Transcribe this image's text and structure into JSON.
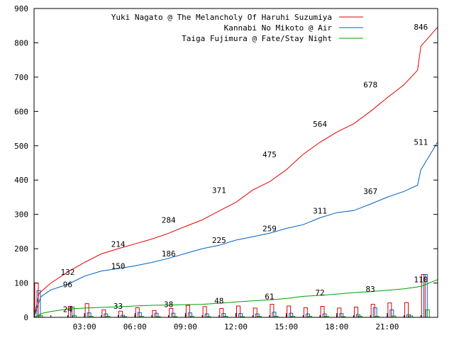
{
  "chart_data": {
    "type": "line",
    "title": "",
    "xlabel": "",
    "ylabel": "",
    "xlim": [
      0,
      24
    ],
    "ylim": [
      0,
      900
    ],
    "y_ticks": [
      0,
      100,
      200,
      300,
      400,
      500,
      600,
      700,
      800,
      900
    ],
    "x_ticks": [
      {
        "x": 3,
        "label": "03:00"
      },
      {
        "x": 6,
        "label": "06:00"
      },
      {
        "x": 9,
        "label": "09:00"
      },
      {
        "x": 12,
        "label": "12:00"
      },
      {
        "x": 15,
        "label": "15:00"
      },
      {
        "x": 18,
        "label": "18:00"
      },
      {
        "x": 21,
        "label": "21:00"
      }
    ],
    "legend_placement": "top-right",
    "grid": false,
    "series": [
      {
        "name": "Yuki Nagato @ The Melancholy Of Haruhi Suzumiya",
        "color": "#e00000",
        "x": [
          0,
          0.3,
          1,
          2,
          3,
          4,
          5,
          6,
          7,
          8,
          9,
          10,
          11,
          12,
          13,
          14,
          15,
          16,
          17,
          18,
          19,
          20,
          21,
          22,
          22.8,
          23,
          24
        ],
        "y": [
          0,
          70,
          100,
          132,
          160,
          185,
          200,
          214,
          228,
          245,
          265,
          284,
          310,
          335,
          371,
          395,
          430,
          475,
          510,
          540,
          564,
          600,
          640,
          678,
          720,
          790,
          846
        ],
        "labels": [
          {
            "x": 2,
            "y": 132,
            "text": "132"
          },
          {
            "x": 5,
            "y": 214,
            "text": "214"
          },
          {
            "x": 8,
            "y": 284,
            "text": "284"
          },
          {
            "x": 11,
            "y": 371,
            "text": "371"
          },
          {
            "x": 14,
            "y": 475,
            "text": "475"
          },
          {
            "x": 17,
            "y": 564,
            "text": "564"
          },
          {
            "x": 20,
            "y": 678,
            "text": "678"
          },
          {
            "x": 23,
            "y": 846,
            "text": "846"
          }
        ],
        "hourly_counts": [
          100,
          0,
          32,
          40,
          22,
          18,
          28,
          20,
          26,
          35,
          31,
          26,
          33,
          27,
          38,
          33,
          28,
          32,
          27,
          30,
          38,
          42,
          43,
          125
        ]
      },
      {
        "name": "Kannabi No Mikoto @ Air",
        "color": "#0060c0",
        "x": [
          0,
          0.4,
          1,
          2,
          3,
          4,
          5,
          6,
          7,
          8,
          9,
          10,
          11,
          12,
          13,
          14,
          15,
          16,
          17,
          18,
          19,
          20,
          21,
          22,
          22.8,
          23,
          23.5,
          24
        ],
        "y": [
          0,
          60,
          80,
          96,
          120,
          135,
          142,
          150,
          160,
          172,
          186,
          200,
          210,
          225,
          235,
          245,
          259,
          270,
          290,
          305,
          311,
          330,
          350,
          367,
          385,
          430,
          470,
          511
        ],
        "labels": [
          {
            "x": 2,
            "y": 96,
            "text": "96"
          },
          {
            "x": 5,
            "y": 150,
            "text": "150"
          },
          {
            "x": 8,
            "y": 186,
            "text": "186"
          },
          {
            "x": 11,
            "y": 225,
            "text": "225"
          },
          {
            "x": 14,
            "y": 259,
            "text": "259"
          },
          {
            "x": 17,
            "y": 311,
            "text": "311"
          },
          {
            "x": 20,
            "y": 367,
            "text": "367"
          },
          {
            "x": 23,
            "y": 511,
            "text": "511"
          }
        ],
        "hourly_counts": [
          78,
          0,
          30,
          13,
          10,
          6,
          14,
          12,
          12,
          13,
          10,
          11,
          11,
          10,
          15,
          12,
          10,
          10,
          11,
          8,
          28,
          22,
          8,
          125
        ]
      },
      {
        "name": "Taiga Fujimura @ Fate/Stay Night",
        "color": "#00a000",
        "x": [
          0,
          0.5,
          1,
          2,
          3,
          4,
          5,
          6,
          7,
          8,
          9,
          10,
          11,
          12,
          13,
          14,
          15,
          16,
          17,
          18,
          19,
          20,
          21,
          22,
          23,
          24
        ],
        "y": [
          0,
          12,
          17,
          24,
          27,
          29,
          31,
          33,
          35,
          36,
          37,
          38,
          41,
          45,
          48,
          51,
          55,
          61,
          64,
          68,
          72,
          75,
          79,
          83,
          90,
          110
        ],
        "labels": [
          {
            "x": 2,
            "y": 24,
            "text": "24"
          },
          {
            "x": 5,
            "y": 33,
            "text": "33"
          },
          {
            "x": 8,
            "y": 38,
            "text": "38"
          },
          {
            "x": 11,
            "y": 48,
            "text": "48"
          },
          {
            "x": 14,
            "y": 61,
            "text": "61"
          },
          {
            "x": 17,
            "y": 72,
            "text": "72"
          },
          {
            "x": 20,
            "y": 83,
            "text": "83"
          },
          {
            "x": 23,
            "y": 110,
            "text": "110"
          }
        ],
        "hourly_counts": [
          5,
          0,
          5,
          3,
          3,
          2,
          3,
          2,
          2,
          3,
          2,
          3,
          2,
          3,
          3,
          3,
          3,
          3,
          2,
          3,
          3,
          4,
          4,
          22
        ]
      }
    ]
  }
}
